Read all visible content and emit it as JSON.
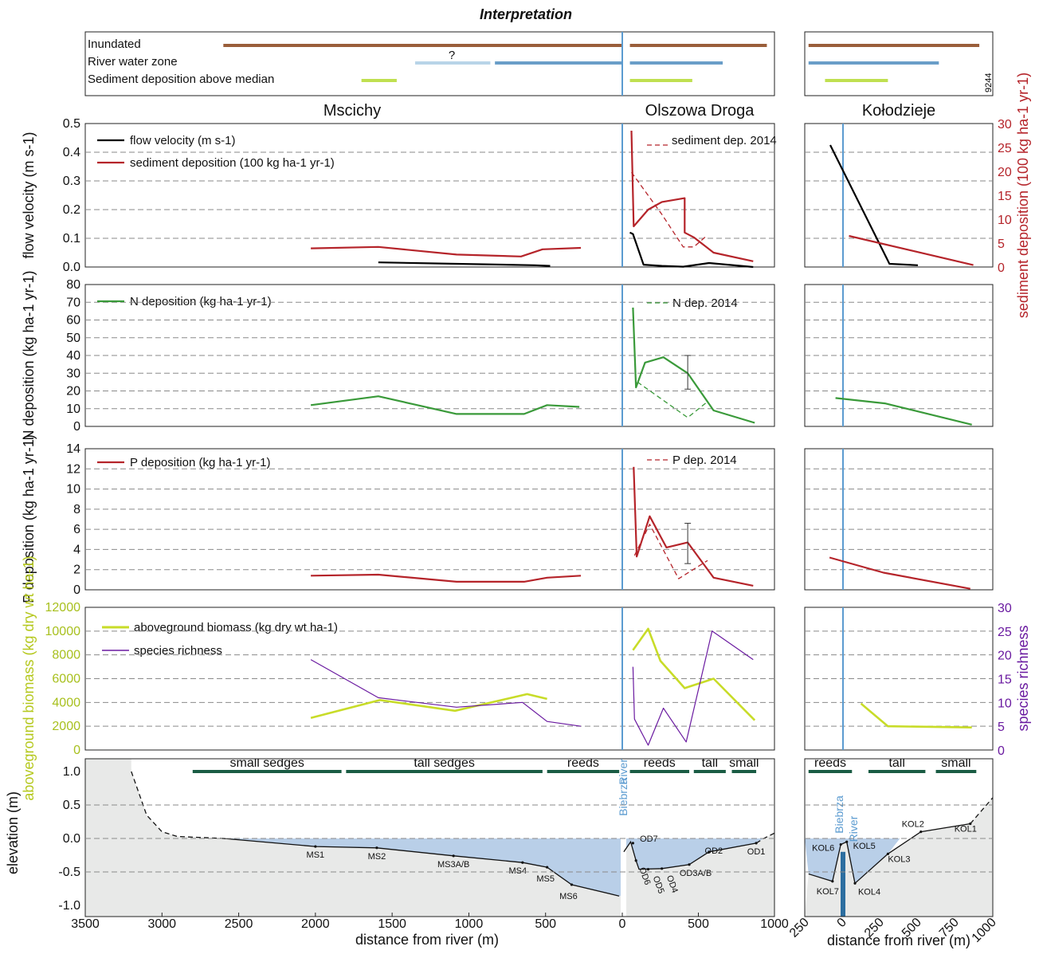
{
  "figure": {
    "title": "Interpretation",
    "figure_id": "9244",
    "sites": [
      "Mscichy",
      "Olszowa Droga",
      "Kołodzieje"
    ],
    "river_labels": [
      "Biebrza",
      "River"
    ],
    "colors": {
      "inundated": "#9a5e3a",
      "river_zone": "#6a9ec8",
      "river_zone_uncertain": "#b8d4e8",
      "sediment_line": "#c0e050",
      "velocity": "#000000",
      "sediment": "#b5242a",
      "n_dep": "#3a9a3a",
      "p_dep": "#b5242a",
      "biomass": "#c8dc28",
      "richness": "#6a1aa0",
      "river": "#5b9bd0",
      "water_fill": "#b9cfe8",
      "ground_fill": "#e8e9e8",
      "veg_bar": "#1a5c44"
    }
  },
  "chart_data": [
    {
      "type": "bar",
      "title": "Interpretation",
      "categories": [
        "Inundated",
        "River water zone",
        "Sediment deposition above median"
      ],
      "uncertain_marker": "?",
      "series": [
        {
          "name": "Inundated",
          "segments": [
            [
              2600,
              0
            ],
            [
              50,
              950
            ]
          ],
          "kol_segments": [
            [
              -230,
              910
            ]
          ]
        },
        {
          "name": "River water zone",
          "segments": [
            [
              1350,
              860
            ],
            [
              830,
              0
            ],
            [
              50,
              660
            ]
          ],
          "uncertain": [
            1350,
            860
          ],
          "kol_segments": [
            [
              -230,
              640
            ]
          ]
        },
        {
          "name": "Sediment deposition above median",
          "segments": [
            [
              1700,
              1470
            ],
            [
              50,
              460
            ]
          ],
          "kol_segments": [
            [
              -120,
              300
            ]
          ]
        }
      ]
    },
    {
      "type": "line",
      "ylabel": "flow velocity (m s-1)",
      "y2label": "sediment deposition (100 kg ha-1 yr-1)",
      "ylim": [
        0,
        0.5
      ],
      "y2lim": [
        0,
        30
      ],
      "yticks": [
        "0.0",
        "0.1",
        "0.2",
        "0.3",
        "0.4",
        "0.5"
      ],
      "y2ticks": [
        "0",
        "5",
        "10",
        "15",
        "20",
        "25",
        "30"
      ],
      "legend": [
        "flow velocity (m s-1)",
        "sediment deposition (100 kg ha-1 yr-1)"
      ],
      "legend_right": "sediment dep. 2014",
      "series": [
        {
          "name": "flow velocity",
          "axis": "left",
          "ms": [
            [
              1590,
              0.016
            ],
            [
              1080,
              0.011
            ],
            [
              570,
              0.006
            ],
            [
              470,
              0.004
            ]
          ],
          "od": [
            [
              50,
              0.12
            ],
            [
              70,
              0.115
            ],
            [
              140,
              0.008
            ],
            [
              260,
              0.004
            ],
            [
              400,
              0.001
            ],
            [
              570,
              0.014
            ],
            [
              860,
              0.0
            ]
          ],
          "kol": [
            [
              -85,
              0.425
            ],
            [
              310,
              0.011
            ],
            [
              500,
              0.006
            ]
          ]
        },
        {
          "name": "sediment deposition",
          "axis": "right",
          "ms": [
            [
              2030,
              3.9
            ],
            [
              1590,
              4.2
            ],
            [
              1080,
              2.6
            ],
            [
              660,
              2.2
            ],
            [
              520,
              3.7
            ],
            [
              270,
              4.0
            ]
          ],
          "od": [
            [
              60,
              28.5
            ],
            [
              75,
              8.5
            ],
            [
              170,
              12.0
            ],
            [
              260,
              13.6
            ],
            [
              410,
              14.4
            ],
            [
              410,
              7.2
            ],
            [
              470,
              6.2
            ],
            [
              600,
              3.0
            ],
            [
              860,
              1.2
            ]
          ],
          "kol": [
            [
              40,
              6.5
            ],
            [
              870,
              0.4
            ]
          ]
        },
        {
          "name": "sediment dep. 2014",
          "axis": "right",
          "dashed": true,
          "od": [
            [
              60,
              19.8
            ],
            [
              260,
              11.0
            ],
            [
              400,
              4.2
            ],
            [
              470,
              4.2
            ],
            [
              550,
              6.4
            ]
          ]
        }
      ]
    },
    {
      "type": "line",
      "ylabel": "N deposition (kg ha-1 yr-1)",
      "ylim": [
        0,
        80
      ],
      "yticks": [
        "0",
        "10",
        "20",
        "30",
        "40",
        "50",
        "60",
        "70",
        "80"
      ],
      "legend": [
        "N deposition (kg ha-1 yr-1)"
      ],
      "legend_right": "N dep. 2014",
      "error_bar": {
        "x": 430,
        "low": 21,
        "high": 40
      },
      "series": [
        {
          "name": "N deposition",
          "ms": [
            [
              2030,
              12
            ],
            [
              1590,
              17
            ],
            [
              1080,
              7
            ],
            [
              640,
              7
            ],
            [
              490,
              12
            ],
            [
              280,
              11
            ]
          ],
          "od": [
            [
              70,
              67
            ],
            [
              90,
              22
            ],
            [
              150,
              36
            ],
            [
              270,
              39
            ],
            [
              430,
              30
            ],
            [
              600,
              9
            ],
            [
              870,
              2
            ]
          ],
          "kol": [
            [
              -50,
              16
            ],
            [
              280,
              13
            ],
            [
              860,
              1
            ]
          ]
        },
        {
          "name": "N dep. 2014",
          "dashed": true,
          "od": [
            [
              100,
              25
            ],
            [
              430,
              5
            ],
            [
              560,
              14
            ]
          ]
        }
      ]
    },
    {
      "type": "line",
      "ylabel": "P deposition (kg ha-1 yr-1)",
      "ylim": [
        0,
        14
      ],
      "yticks": [
        "0",
        "2",
        "4",
        "6",
        "8",
        "10",
        "12",
        "14"
      ],
      "legend": [
        "P deposition (kg ha-1 yr-1)"
      ],
      "legend_right": "P dep. 2014",
      "error_bar": {
        "x": 430,
        "low": 2.6,
        "high": 6.6
      },
      "series": [
        {
          "name": "P deposition",
          "ms": [
            [
              2030,
              1.4
            ],
            [
              1590,
              1.5
            ],
            [
              1080,
              0.8
            ],
            [
              640,
              0.8
            ],
            [
              490,
              1.2
            ],
            [
              270,
              1.4
            ]
          ],
          "od": [
            [
              75,
              12.2
            ],
            [
              95,
              3.3
            ],
            [
              180,
              7.3
            ],
            [
              290,
              4.2
            ],
            [
              430,
              4.7
            ],
            [
              600,
              1.2
            ],
            [
              860,
              0.4
            ]
          ],
          "kol": [
            [
              -90,
              3.2
            ],
            [
              270,
              1.7
            ],
            [
              850,
              0.1
            ]
          ]
        },
        {
          "name": "P dep. 2014",
          "dashed": true,
          "od": [
            [
              80,
              3.4
            ],
            [
              180,
              6.5
            ],
            [
              370,
              1.1
            ],
            [
              560,
              2.9
            ]
          ]
        }
      ]
    },
    {
      "type": "line",
      "ylabel": "aboveground biomass (kg dry wt ha-1)",
      "y2label": "species richness",
      "ylim": [
        0,
        12000
      ],
      "y2lim": [
        0,
        30
      ],
      "yticks": [
        "0",
        "2000",
        "4000",
        "6000",
        "8000",
        "10000",
        "12000"
      ],
      "y2ticks": [
        "0",
        "5",
        "10",
        "15",
        "20",
        "25",
        "30"
      ],
      "legend": [
        "aboveground biomass (kg dry wt ha-1)",
        "species richness"
      ],
      "series": [
        {
          "name": "aboveground biomass",
          "axis": "left",
          "ms": [
            [
              2030,
              2700
            ],
            [
              1580,
              4200
            ],
            [
              1090,
              3300
            ],
            [
              620,
              4700
            ],
            [
              490,
              4300
            ]
          ],
          "od": [
            [
              70,
              8400
            ],
            [
              170,
              10200
            ],
            [
              250,
              7500
            ],
            [
              410,
              5200
            ],
            [
              600,
              6000
            ],
            [
              870,
              2500
            ]
          ],
          "kol": [
            [
              120,
              3900
            ],
            [
              300,
              2000
            ],
            [
              860,
              1900
            ]
          ]
        },
        {
          "name": "species richness",
          "axis": "right",
          "ms": [
            [
              2030,
              19
            ],
            [
              1590,
              11
            ],
            [
              1080,
              9
            ],
            [
              650,
              10
            ],
            [
              490,
              6
            ],
            [
              270,
              5
            ]
          ],
          "od": [
            [
              70,
              17.5
            ],
            [
              80,
              6.5
            ],
            [
              170,
              1
            ],
            [
              270,
              8.8
            ],
            [
              420,
              1.7
            ],
            [
              590,
              25
            ],
            [
              860,
              19
            ]
          ],
          "kol": []
        }
      ]
    },
    {
      "type": "area",
      "xlabel": "distance from river (m)",
      "xlabel_kol": "distance from river (m)",
      "ylabel": "elevation (m)",
      "ylim": [
        -1.0,
        1.0
      ],
      "yticks": [
        "-1.0",
        "-0.5",
        "0.0",
        "0.5",
        "1.0"
      ],
      "xticks_left": [
        "3500",
        "3000",
        "2500",
        "2000",
        "1500",
        "1000",
        "500",
        "0"
      ],
      "xticks_right": [
        "0",
        "500",
        "1000"
      ],
      "xticks_kol": [
        "250",
        "0",
        "250",
        "500",
        "750",
        "1000"
      ],
      "zones_ms": [
        {
          "name": "small sedges",
          "from": 2800,
          "to": 1830
        },
        {
          "name": "tall sedges",
          "from": 1800,
          "to": 520
        },
        {
          "name": "reeds",
          "from": 490,
          "to": 20
        }
      ],
      "zones_od": [
        {
          "name": "reeds",
          "from": 50,
          "to": 440
        },
        {
          "name": "tall",
          "from": 470,
          "to": 680
        },
        {
          "name": "small",
          "from": 720,
          "to": 880
        }
      ],
      "zones_kol": [
        {
          "name": "reeds",
          "from": -230,
          "to": 60
        },
        {
          "name": "tall",
          "from": 170,
          "to": 550
        },
        {
          "name": "small",
          "from": 620,
          "to": 890
        }
      ],
      "ground_ms": [
        [
          3200,
          1.0
        ],
        [
          3100,
          0.35
        ],
        [
          3000,
          0.1
        ],
        [
          2900,
          0.03
        ],
        [
          2600,
          0.0
        ],
        [
          2000,
          -0.12
        ],
        [
          1600,
          -0.14
        ],
        [
          1100,
          -0.26
        ],
        [
          650,
          -0.36
        ],
        [
          490,
          -0.43
        ],
        [
          330,
          -0.69
        ],
        [
          20,
          -0.86
        ]
      ],
      "ground_od": [
        [
          10,
          -0.2
        ],
        [
          55,
          -0.05
        ],
        [
          90,
          -0.33
        ],
        [
          110,
          -0.46
        ],
        [
          260,
          -0.45
        ],
        [
          440,
          -0.39
        ],
        [
          570,
          -0.2
        ],
        [
          880,
          -0.07
        ],
        [
          930,
          0.0
        ],
        [
          1000,
          0.08
        ]
      ],
      "ground_kol": [
        [
          -230,
          -0.53
        ],
        [
          -70,
          -0.64
        ],
        [
          -15,
          -0.09
        ],
        [
          25,
          -0.05
        ],
        [
          80,
          -0.67
        ],
        [
          300,
          -0.23
        ],
        [
          520,
          0.1
        ],
        [
          850,
          0.22
        ],
        [
          1000,
          0.61
        ]
      ],
      "points": [
        {
          "label": "MS1",
          "site": "ms",
          "x": 2000,
          "y": -0.12
        },
        {
          "label": "MS2",
          "site": "ms",
          "x": 1600,
          "y": -0.14
        },
        {
          "label": "MS3A/B",
          "site": "ms",
          "x": 1100,
          "y": -0.26
        },
        {
          "label": "MS4",
          "site": "ms",
          "x": 650,
          "y": -0.36
        },
        {
          "label": "MS5",
          "site": "ms",
          "x": 490,
          "y": -0.43
        },
        {
          "label": "MS6",
          "site": "ms",
          "x": 330,
          "y": -0.69
        },
        {
          "label": "OD7",
          "site": "od",
          "x": 70,
          "y": -0.07
        },
        {
          "label": "OD6",
          "site": "od",
          "x": 90,
          "y": -0.33
        },
        {
          "label": "OD5",
          "site": "od",
          "x": 170,
          "y": -0.46
        },
        {
          "label": "OD4",
          "site": "od",
          "x": 260,
          "y": -0.45
        },
        {
          "label": "OD3A/B",
          "site": "od",
          "x": 440,
          "y": -0.39
        },
        {
          "label": "OD2",
          "site": "od",
          "x": 570,
          "y": -0.2
        },
        {
          "label": "OD1",
          "site": "od",
          "x": 880,
          "y": -0.07
        },
        {
          "label": "KOL1",
          "site": "kol",
          "x": 850,
          "y": 0.22
        },
        {
          "label": "KOL2",
          "site": "kol",
          "x": 520,
          "y": 0.1
        },
        {
          "label": "KOL3",
          "site": "kol",
          "x": 300,
          "y": -0.23
        },
        {
          "label": "KOL4",
          "site": "kol",
          "x": 80,
          "y": -0.67
        },
        {
          "label": "KOL5",
          "site": "kol",
          "x": 25,
          "y": -0.05
        },
        {
          "label": "KOL6",
          "site": "kol",
          "x": -15,
          "y": -0.09
        },
        {
          "label": "KOL7",
          "site": "kol",
          "x": -70,
          "y": -0.64
        }
      ]
    }
  ]
}
